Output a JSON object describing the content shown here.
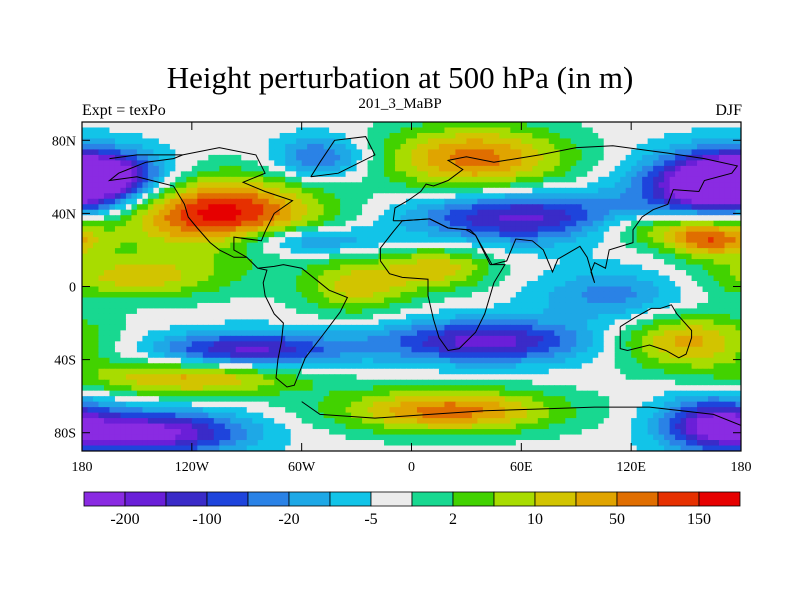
{
  "chart_data": {
    "type": "heatmap",
    "title": "Height perturbation at 500 hPa (in m)",
    "subtitle": "201_3_MaBP",
    "left_label": "Expt = texPo",
    "right_label": "DJF",
    "x_range": [
      -180,
      180
    ],
    "y_range": [
      -90,
      90
    ],
    "x_ticks": [
      {
        "value": -180,
        "label": "180"
      },
      {
        "value": -120,
        "label": "120W"
      },
      {
        "value": -60,
        "label": "60W"
      },
      {
        "value": 0,
        "label": "0"
      },
      {
        "value": 60,
        "label": "60E"
      },
      {
        "value": 120,
        "label": "120E"
      },
      {
        "value": 180,
        "label": "180"
      }
    ],
    "y_ticks": [
      {
        "value": 80,
        "label": "80N"
      },
      {
        "value": 40,
        "label": "40N"
      },
      {
        "value": 0,
        "label": "0"
      },
      {
        "value": -40,
        "label": "40S"
      },
      {
        "value": -80,
        "label": "80S"
      }
    ],
    "colorbar": {
      "colors": [
        "#8a2be2",
        "#6a1fd8",
        "#3a2bc8",
        "#1e44dc",
        "#2a82e6",
        "#1ea8e6",
        "#12c4e8",
        "#ececec",
        "#18d890",
        "#42d200",
        "#a8dc00",
        "#d2c400",
        "#e0a400",
        "#e06e00",
        "#e63000",
        "#e60000"
      ],
      "labels": [
        {
          "boundary": 1,
          "text": "-200"
        },
        {
          "boundary": 3,
          "text": "-100"
        },
        {
          "boundary": 5,
          "text": "-20"
        },
        {
          "boundary": 7,
          "text": "-5"
        },
        {
          "boundary": 9,
          "text": "2"
        },
        {
          "boundary": 11,
          "text": "10"
        },
        {
          "boundary": 13,
          "text": "50"
        },
        {
          "boundary": 15,
          "text": "150"
        }
      ]
    },
    "field_features": [
      {
        "lon": -105,
        "lat": 40,
        "rx": 55,
        "ry": 20,
        "value": 4.0
      },
      {
        "lon": 35,
        "lat": 70,
        "rx": 50,
        "ry": 18,
        "value": 3.0
      },
      {
        "lon": -170,
        "lat": 60,
        "rx": 35,
        "ry": 14,
        "value": -3.5
      },
      {
        "lon": 165,
        "lat": 55,
        "rx": 40,
        "ry": 18,
        "value": -4.0
      },
      {
        "lon": 60,
        "lat": 38,
        "rx": 60,
        "ry": 14,
        "value": -3.0
      },
      {
        "lon": 140,
        "lat": 32,
        "rx": 40,
        "ry": 10,
        "value": 2.0
      },
      {
        "lon": 165,
        "lat": 25,
        "rx": 25,
        "ry": 10,
        "value": 2.5
      },
      {
        "lon": -60,
        "lat": 25,
        "rx": 40,
        "ry": 8,
        "value": -2.0
      },
      {
        "lon": -150,
        "lat": 5,
        "rx": 50,
        "ry": 12,
        "value": 2.0
      },
      {
        "lon": -30,
        "lat": 0,
        "rx": 30,
        "ry": 15,
        "value": 2.0
      },
      {
        "lon": 15,
        "lat": 10,
        "rx": 30,
        "ry": 12,
        "value": 2.0
      },
      {
        "lon": 110,
        "lat": -5,
        "rx": 40,
        "ry": 14,
        "value": -1.5
      },
      {
        "lon": 40,
        "lat": -30,
        "rx": 60,
        "ry": 12,
        "value": -3.0
      },
      {
        "lon": -90,
        "lat": -35,
        "rx": 50,
        "ry": 10,
        "value": -3.0
      },
      {
        "lon": -120,
        "lat": -50,
        "rx": 60,
        "ry": 10,
        "value": 2.5
      },
      {
        "lon": 150,
        "lat": -30,
        "rx": 40,
        "ry": 15,
        "value": 2.5
      },
      {
        "lon": 20,
        "lat": -68,
        "rx": 60,
        "ry": 12,
        "value": 3.0
      },
      {
        "lon": -140,
        "lat": -80,
        "rx": 50,
        "ry": 12,
        "value": -3.5
      },
      {
        "lon": 165,
        "lat": -75,
        "rx": 30,
        "ry": 15,
        "value": -3.0
      },
      {
        "lon": -50,
        "lat": 70,
        "rx": 25,
        "ry": 12,
        "value": -2.0
      }
    ],
    "coastline": [
      [
        [
          -165,
          70
        ],
        [
          -150,
          72
        ],
        [
          -125,
          72
        ],
        [
          -105,
          76
        ],
        [
          -85,
          72
        ],
        [
          -80,
          62
        ],
        [
          -92,
          57
        ],
        [
          -80,
          52
        ],
        [
          -65,
          47
        ],
        [
          -75,
          40
        ],
        [
          -80,
          30
        ],
        [
          -82,
          25
        ],
        [
          -97,
          27
        ],
        [
          -97,
          20
        ],
        [
          -90,
          16
        ],
        [
          -84,
          10
        ],
        [
          -79,
          9
        ],
        [
          -81,
          2
        ],
        [
          -80,
          -5
        ],
        [
          -75,
          -15
        ],
        [
          -70,
          -20
        ],
        [
          -71,
          -30
        ],
        [
          -73,
          -40
        ],
        [
          -74,
          -50
        ],
        [
          -68,
          -55
        ],
        [
          -64,
          -54
        ],
        [
          -58,
          -39
        ],
        [
          -48,
          -26
        ],
        [
          -39,
          -14
        ],
        [
          -35,
          -6
        ],
        [
          -45,
          -2
        ],
        [
          -50,
          2
        ],
        [
          -60,
          10
        ],
        [
          -70,
          12
        ],
        [
          -75,
          11
        ],
        [
          -84,
          10
        ]
      ],
      [
        [
          -125,
          72
        ],
        [
          -130,
          70
        ],
        [
          -145,
          68
        ],
        [
          -160,
          62
        ],
        [
          -165,
          58
        ],
        [
          -150,
          60
        ],
        [
          -130,
          55
        ],
        [
          -124,
          45
        ],
        [
          -122,
          38
        ],
        [
          -117,
          32
        ],
        [
          -110,
          24
        ],
        [
          -105,
          20
        ],
        [
          -97,
          16
        ],
        [
          -90,
          16
        ]
      ],
      [
        [
          -55,
          60
        ],
        [
          -50,
          68
        ],
        [
          -42,
          80
        ],
        [
          -25,
          82
        ],
        [
          -20,
          72
        ],
        [
          -40,
          62
        ],
        [
          -55,
          60
        ]
      ],
      [
        [
          -10,
          36
        ],
        [
          -9,
          43
        ],
        [
          -2,
          47
        ],
        [
          5,
          52
        ],
        [
          8,
          56
        ],
        [
          12,
          55
        ],
        [
          20,
          58
        ],
        [
          28,
          64
        ],
        [
          20,
          69
        ],
        [
          30,
          71
        ],
        [
          45,
          68
        ],
        [
          70,
          72
        ],
        [
          90,
          76
        ],
        [
          110,
          77
        ],
        [
          140,
          73
        ],
        [
          160,
          70
        ],
        [
          178,
          66
        ],
        [
          175,
          62
        ],
        [
          160,
          58
        ],
        [
          157,
          52
        ],
        [
          143,
          53
        ],
        [
          140,
          45
        ],
        [
          132,
          42
        ],
        [
          126,
          38
        ],
        [
          121,
          31
        ],
        [
          121,
          24
        ],
        [
          108,
          20
        ],
        [
          106,
          10
        ],
        [
          100,
          13
        ],
        [
          98,
          8
        ],
        [
          100,
          2
        ],
        [
          96,
          16
        ],
        [
          92,
          22
        ],
        [
          80,
          15
        ],
        [
          77,
          8
        ],
        [
          72,
          20
        ],
        [
          66,
          25
        ],
        [
          57,
          26
        ],
        [
          52,
          14
        ],
        [
          44,
          12
        ],
        [
          35,
          28
        ],
        [
          30,
          31
        ],
        [
          20,
          32
        ],
        [
          10,
          37
        ],
        [
          -5,
          36
        ],
        [
          -10,
          36
        ]
      ],
      [
        [
          -17,
          14
        ],
        [
          -17,
          21
        ],
        [
          -10,
          30
        ],
        [
          -5,
          36
        ],
        [
          10,
          37
        ],
        [
          20,
          32
        ],
        [
          32,
          31
        ],
        [
          35,
          28
        ],
        [
          43,
          12
        ],
        [
          51,
          12
        ],
        [
          45,
          2
        ],
        [
          40,
          -15
        ],
        [
          35,
          -25
        ],
        [
          26,
          -34
        ],
        [
          20,
          -35
        ],
        [
          15,
          -28
        ],
        [
          12,
          -18
        ],
        [
          9,
          -5
        ],
        [
          9,
          4
        ],
        [
          -5,
          5
        ],
        [
          -12,
          7
        ],
        [
          -17,
          14
        ]
      ],
      [
        [
          114,
          -22
        ],
        [
          114,
          -34
        ],
        [
          118,
          -35
        ],
        [
          130,
          -32
        ],
        [
          139,
          -35
        ],
        [
          146,
          -39
        ],
        [
          150,
          -37
        ],
        [
          153,
          -28
        ],
        [
          153,
          -24
        ],
        [
          145,
          -15
        ],
        [
          142,
          -10
        ],
        [
          136,
          -12
        ],
        [
          131,
          -12
        ],
        [
          122,
          -17
        ],
        [
          114,
          -22
        ]
      ],
      [
        [
          -60,
          -63
        ],
        [
          -50,
          -70
        ],
        [
          -20,
          -72
        ],
        [
          10,
          -70
        ],
        [
          40,
          -68
        ],
        [
          70,
          -67
        ],
        [
          100,
          -66
        ],
        [
          130,
          -66
        ],
        [
          165,
          -70
        ],
        [
          180,
          -76
        ]
      ]
    ]
  }
}
